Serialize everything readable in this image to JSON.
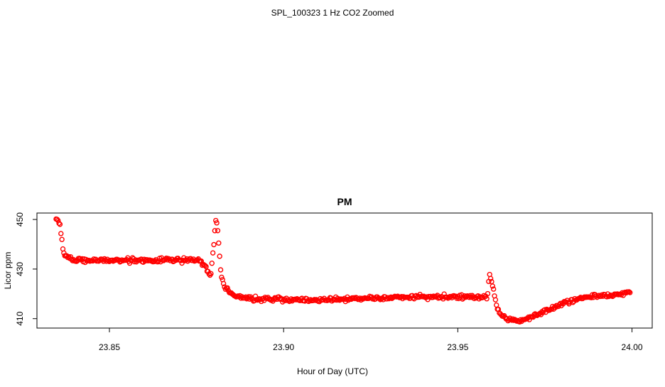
{
  "page_title": "SPL_100323  1 Hz CO2 Zoomed",
  "chart_data": {
    "type": "scatter",
    "title": "PM",
    "xlabel": "Hour of Day (UTC)",
    "ylabel": "Licor ppm",
    "xlim": [
      23.8292,
      24.0058
    ],
    "ylim": [
      406.2,
      452.6
    ],
    "xticks": [
      23.85,
      23.9,
      23.95,
      24.0
    ],
    "xtick_labels": [
      "23.85",
      "23.90",
      "23.95",
      "24.00"
    ],
    "yticks": [
      410,
      430,
      450
    ],
    "ytick_labels": [
      "410",
      "430",
      "450"
    ],
    "grid": false,
    "legend": "none",
    "marker": "open-circle",
    "color": "#ff0000",
    "sampling": "1 Hz",
    "profile_x": [
      23.8347,
      23.8353,
      23.8358,
      23.8362,
      23.8366,
      23.8371,
      23.8378,
      23.8388,
      23.84,
      23.85,
      23.86,
      23.87,
      23.875,
      23.876,
      23.877,
      23.878,
      23.879,
      23.88,
      23.8805,
      23.881,
      23.882,
      23.883,
      23.885,
      23.887,
      23.89,
      23.9,
      23.91,
      23.92,
      23.93,
      23.94,
      23.95,
      23.957,
      23.9585,
      23.959,
      23.96,
      23.961,
      23.962,
      23.964,
      23.966,
      23.968,
      23.97,
      23.975,
      23.98,
      23.985,
      23.99,
      23.995,
      23.9995
    ],
    "profile_y": [
      450.8,
      450.0,
      448.0,
      443.0,
      438.5,
      436.0,
      435.0,
      434.0,
      433.5,
      433.5,
      433.5,
      433.5,
      434.0,
      433.0,
      432.0,
      430.0,
      427.0,
      440.0,
      450.0,
      447.0,
      428.0,
      423.0,
      420.0,
      419.0,
      418.0,
      417.8,
      417.5,
      418.0,
      418.5,
      418.8,
      418.8,
      418.8,
      418.0,
      428.0,
      423.0,
      416.0,
      412.0,
      410.2,
      409.5,
      409.0,
      410.0,
      413.0,
      416.0,
      418.0,
      419.0,
      419.8,
      420.5
    ],
    "noise_ppm": 0.6
  }
}
